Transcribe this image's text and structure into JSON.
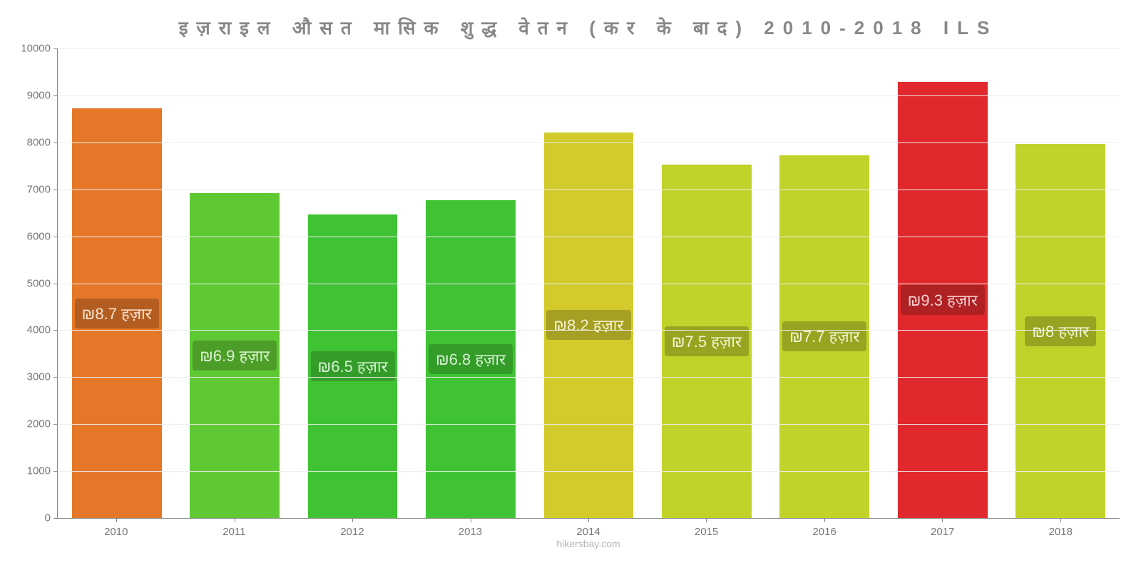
{
  "title": "इज़राइल  औसत  मासिक  शुद्ध  वेतन  (कर  के  बाद) 2010-2018 ILS",
  "title_fontsize": 26,
  "title_color": "#888888",
  "credit": "hikersbay.com",
  "credit_color": "#b5b5b5",
  "background_color": "#ffffff",
  "grid_color": "#ededed",
  "axis_color": "#888888",
  "tick_label_color": "#777777",
  "chart": {
    "type": "bar",
    "ylim": [
      0,
      10000
    ],
    "ytick_step": 1000,
    "yticks": [
      "0",
      "1000",
      "2000",
      "3000",
      "4000",
      "5000",
      "6000",
      "7000",
      "8000",
      "9000",
      "10000"
    ],
    "bar_width": 0.76,
    "label_chip_radius": 4,
    "data_label_fontsize": 22,
    "data_label_color": "#ffffff",
    "data_label_chip_opacity": 0.78,
    "categories": [
      "2010",
      "2011",
      "2012",
      "2013",
      "2014",
      "2015",
      "2016",
      "2017",
      "2018"
    ],
    "values": [
      8720,
      6920,
      6460,
      6770,
      8210,
      7520,
      7730,
      9280,
      7960
    ],
    "labels": [
      "₪8.7 हज़ार",
      "₪6.9 हज़ार",
      "₪6.5 हज़ार",
      "₪6.8 हज़ार",
      "₪8.2 हज़ार",
      "₪7.5 हज़ार",
      "₪7.7 हज़ार",
      "₪9.3 हज़ार",
      "₪8 हज़ार"
    ],
    "bar_colors": [
      "#e57828",
      "#5fc933",
      "#3fc234",
      "#3fc234",
      "#d3cb2b",
      "#c1d22a",
      "#c1d22a",
      "#e1282c",
      "#c1d22a"
    ],
    "chip_colors": [
      "#a5571f",
      "#479225",
      "#319226",
      "#319226",
      "#999321",
      "#8c981f",
      "#8c981f",
      "#a22021",
      "#8c981f"
    ]
  }
}
